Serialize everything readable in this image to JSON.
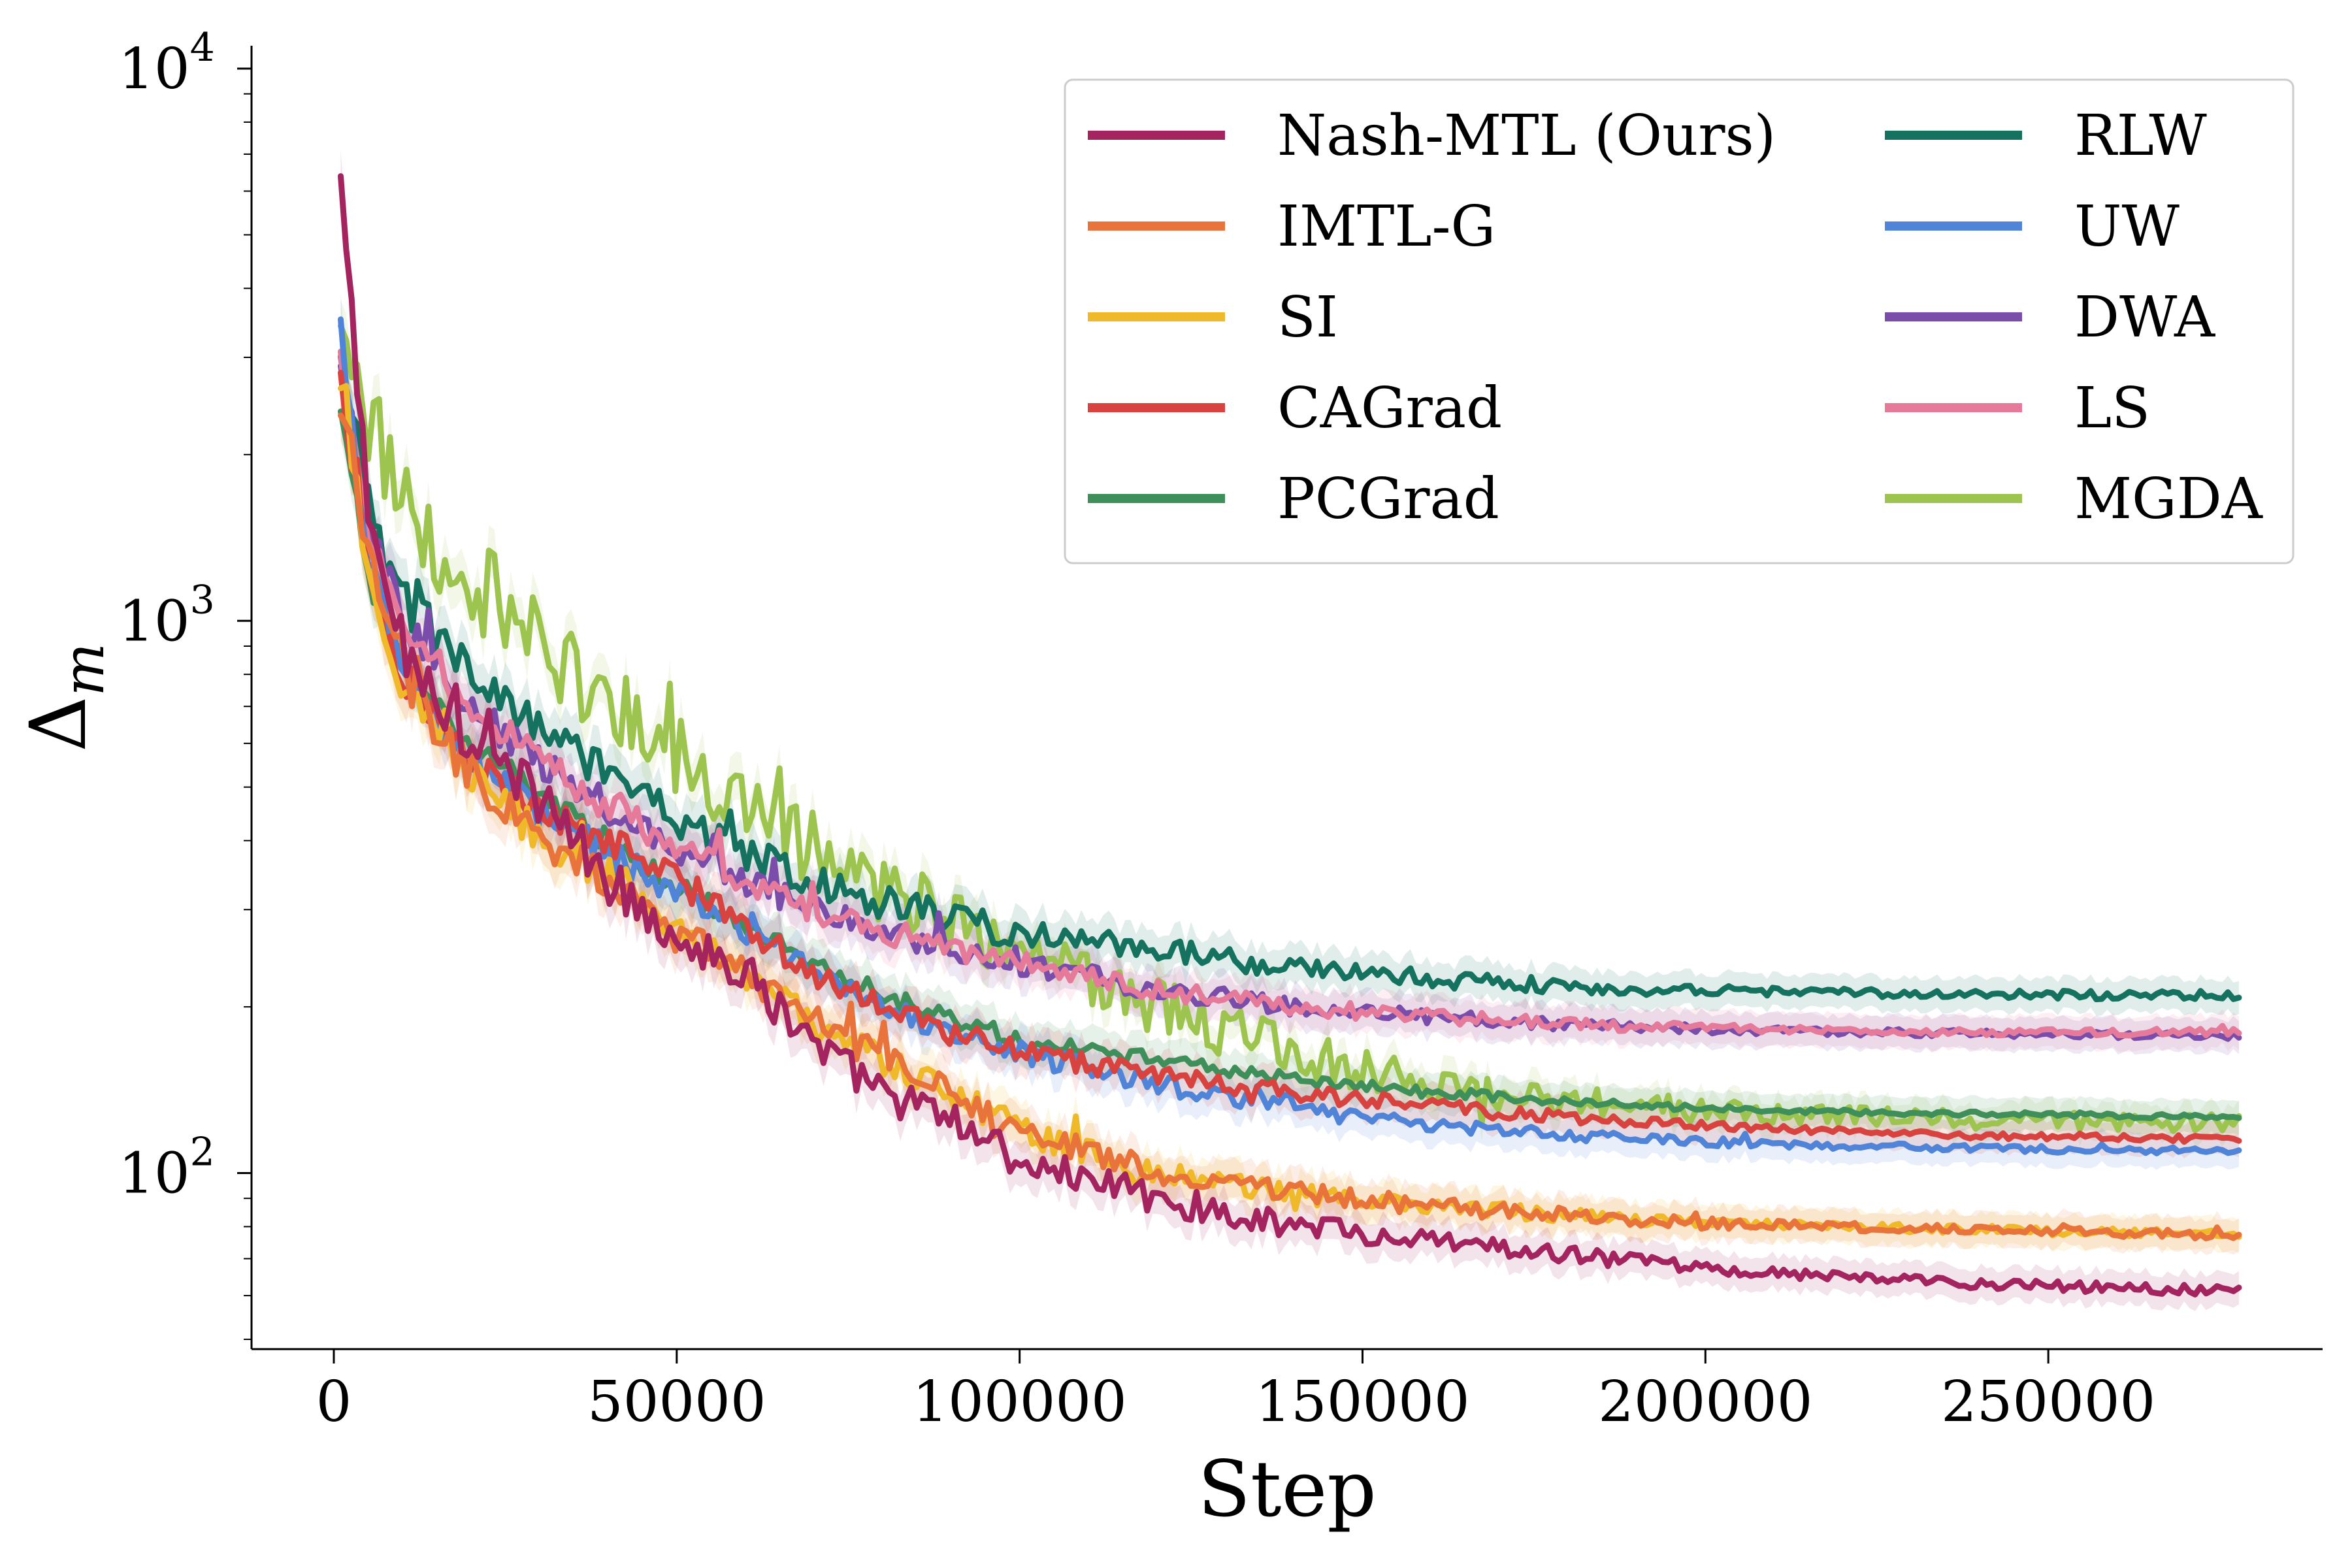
{
  "chart_data": {
    "type": "line",
    "title": "",
    "xlabel": "Step",
    "ylabel": "Δm",
    "y_scale": "log",
    "xlim": [
      -12000,
      290000
    ],
    "ylim": [
      48,
      11000
    ],
    "x_ticks": [
      0,
      50000,
      100000,
      150000,
      200000,
      250000
    ],
    "x_tick_labels": [
      "0",
      "50000",
      "100000",
      "150000",
      "200000",
      "250000"
    ],
    "y_ticks": [
      100,
      1000,
      10000
    ],
    "y_tick_labels": [
      {
        "base": "10",
        "exp": "2"
      },
      {
        "base": "10",
        "exp": "3"
      },
      {
        "base": "10",
        "exp": "4"
      }
    ],
    "grid": false,
    "legend": {
      "placement": "top-right",
      "columns": 2
    },
    "x": [
      1000,
      5000,
      10000,
      20000,
      30000,
      40000,
      50000,
      60000,
      70000,
      80000,
      90000,
      100000,
      120000,
      140000,
      160000,
      180000,
      200000,
      220000,
      240000,
      260000,
      278000
    ],
    "series": [
      {
        "name": "Nash-MTL (Ours)",
        "color": "#a3245e",
        "noise": 0.12,
        "values": [
          6200,
          1500,
          900,
          600,
          480,
          340,
          270,
          230,
          170,
          140,
          125,
          105,
          90,
          80,
          75,
          71,
          67,
          65,
          63,
          62,
          61
        ]
      },
      {
        "name": "IMTL-G",
        "color": "#e8743b",
        "noise": 0.1,
        "values": [
          2600,
          1300,
          800,
          520,
          400,
          340,
          270,
          230,
          190,
          160,
          140,
          120,
          100,
          92,
          87,
          84,
          81,
          80,
          79,
          78,
          77
        ]
      },
      {
        "name": "SI",
        "color": "#efb929",
        "noise": 0.1,
        "values": [
          2700,
          1200,
          780,
          520,
          410,
          350,
          280,
          230,
          185,
          160,
          140,
          120,
          100,
          92,
          87,
          84,
          81,
          80,
          79,
          78,
          78
        ]
      },
      {
        "name": "CAGrad",
        "color": "#d9433f",
        "noise": 0.08,
        "values": [
          2700,
          1200,
          800,
          560,
          460,
          400,
          340,
          280,
          230,
          200,
          180,
          165,
          150,
          140,
          132,
          126,
          122,
          119,
          117,
          116,
          115
        ]
      },
      {
        "name": "PCGrad",
        "color": "#3f8f5a",
        "noise": 0.06,
        "values": [
          2500,
          1200,
          850,
          600,
          480,
          400,
          330,
          280,
          240,
          210,
          190,
          175,
          160,
          148,
          140,
          135,
          131,
          129,
          128,
          127,
          126
        ]
      },
      {
        "name": "RLW",
        "color": "#14725f",
        "noise": 0.1,
        "values": [
          3000,
          1600,
          1100,
          800,
          650,
          520,
          440,
          380,
          340,
          310,
          290,
          270,
          255,
          235,
          225,
          218,
          214,
          212,
          211,
          210,
          210
        ]
      },
      {
        "name": "UW",
        "color": "#4f84d9",
        "noise": 0.08,
        "values": [
          3300,
          1300,
          800,
          560,
          450,
          380,
          320,
          270,
          230,
          200,
          180,
          165,
          145,
          130,
          122,
          117,
          114,
          112,
          111,
          110,
          110
        ]
      },
      {
        "name": "DWA",
        "color": "#7b4dab",
        "noise": 0.08,
        "values": [
          3000,
          1500,
          1000,
          700,
          560,
          460,
          390,
          340,
          300,
          275,
          255,
          240,
          215,
          200,
          192,
          186,
          182,
          180,
          179,
          178,
          177
        ]
      },
      {
        "name": "LS",
        "color": "#e57a9a",
        "noise": 0.08,
        "values": [
          3000,
          1500,
          1000,
          700,
          560,
          460,
          390,
          340,
          300,
          275,
          255,
          240,
          215,
          200,
          192,
          186,
          183,
          181,
          180,
          180,
          180
        ]
      },
      {
        "name": "MGDA",
        "color": "#9cc44f",
        "noise": 0.22,
        "values": [
          4200,
          2300,
          1600,
          1200,
          900,
          700,
          560,
          460,
          390,
          330,
          290,
          250,
          200,
          165,
          145,
          135,
          130,
          127,
          125,
          124,
          123
        ]
      }
    ]
  }
}
